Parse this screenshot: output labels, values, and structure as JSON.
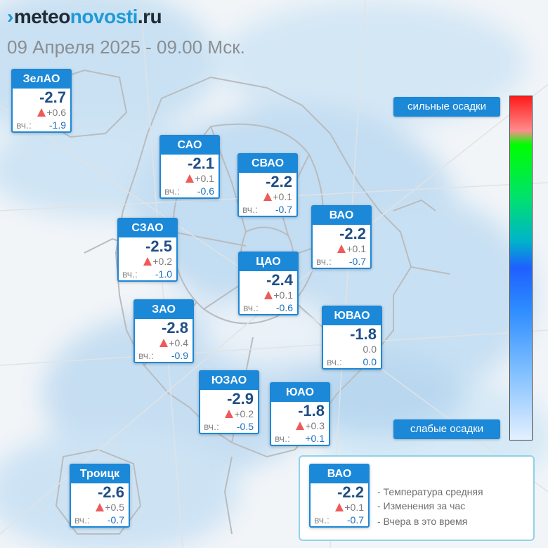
{
  "header": {
    "logo_mark": "›",
    "logo_part1": "meteo",
    "logo_part2": "novosti",
    "logo_part3": ".ru",
    "subtitle": "09 Апреля 2025 - 09.00 Мск."
  },
  "labels": {
    "yesterday_prefix": "вч.:"
  },
  "districts": [
    {
      "name": "ЗелАО",
      "temp": "-2.7",
      "change": "+0.6",
      "change_up": true,
      "yesterday": "-1.9"
    },
    {
      "name": "САО",
      "temp": "-2.1",
      "change": "+0.1",
      "change_up": true,
      "yesterday": "-0.6"
    },
    {
      "name": "СВАО",
      "temp": "-2.2",
      "change": "+0.1",
      "change_up": true,
      "yesterday": "-0.7"
    },
    {
      "name": "ВАО",
      "temp": "-2.2",
      "change": "+0.1",
      "change_up": true,
      "yesterday": "-0.7"
    },
    {
      "name": "СЗАО",
      "temp": "-2.5",
      "change": "+0.2",
      "change_up": true,
      "yesterday": "-1.0"
    },
    {
      "name": "ЦАО",
      "temp": "-2.4",
      "change": "+0.1",
      "change_up": true,
      "yesterday": "-0.6"
    },
    {
      "name": "ЗАО",
      "temp": "-2.8",
      "change": "+0.4",
      "change_up": true,
      "yesterday": "-0.9"
    },
    {
      "name": "ЮВАО",
      "temp": "-1.8",
      "change": "0.0",
      "change_up": false,
      "yesterday": "0.0"
    },
    {
      "name": "ЮЗАО",
      "temp": "-2.9",
      "change": "+0.2",
      "change_up": true,
      "yesterday": "-0.5"
    },
    {
      "name": "ЮАО",
      "temp": "-1.8",
      "change": "+0.3",
      "change_up": true,
      "yesterday": "+0.1"
    },
    {
      "name": "Троицк",
      "temp": "-2.6",
      "change": "+0.5",
      "change_up": true,
      "yesterday": "-0.7"
    }
  ],
  "precip_scale": {
    "strong_label": "сильные осадки",
    "weak_label": "слабые осадки"
  },
  "legend": {
    "sample": {
      "name": "ВАО",
      "temp": "-2.2",
      "change": "+0.1",
      "change_up": true,
      "yesterday": "-0.7"
    },
    "desc_temp": "- Температура средняя",
    "desc_change": "- Изменения за час",
    "desc_yesterday": "- Вчера в это время"
  },
  "colors": {
    "accent": "#1b88d8",
    "temp_text": "#1f4e86",
    "rise_triangle": "#ee5a5a",
    "legend_border": "#8fd2e8"
  }
}
